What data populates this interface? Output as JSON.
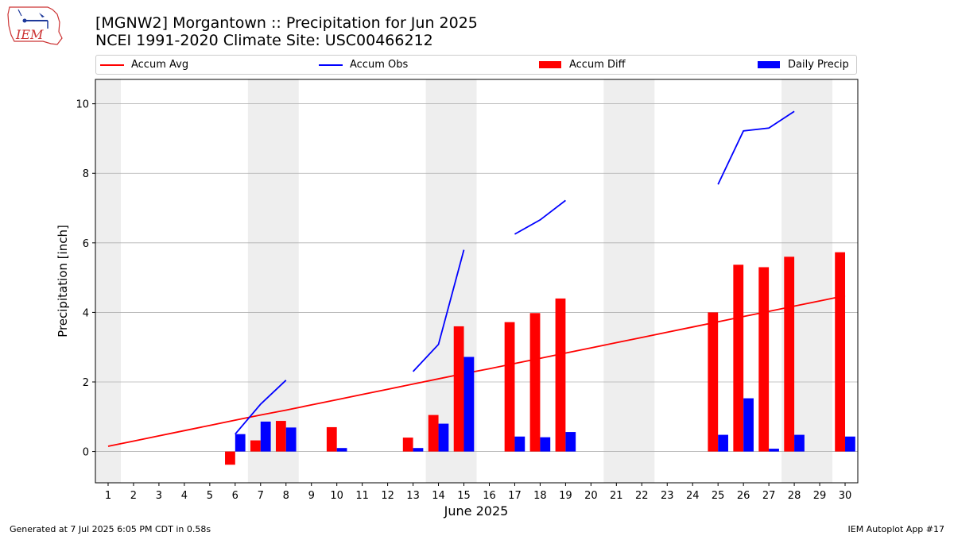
{
  "header": {
    "title_line1": "[MGNW2] Morgantown :: Precipitation for Jun 2025",
    "title_line2": "NCEI 1991-2020 Climate Site: USC00466212",
    "logo_text": "IEM"
  },
  "footer": {
    "generated": "Generated at 7 Jul 2025 6:05 PM CDT in 0.58s",
    "app": "IEM Autoplot App #17"
  },
  "colors": {
    "avg": "#ff0000",
    "obs": "#0000ff",
    "diff": "#ff0000",
    "daily": "#0000ff",
    "weekend_shade": "#eeeeee",
    "grid": "#b0b0b0"
  },
  "chart_data": {
    "type": "bar",
    "xlabel": "June 2025",
    "ylabel": "Precipitation [inch]",
    "xlim": [
      0.5,
      30.5
    ],
    "ylim": [
      -0.9,
      10.7
    ],
    "yticks": [
      0,
      2,
      4,
      6,
      8,
      10
    ],
    "x": [
      1,
      2,
      3,
      4,
      5,
      6,
      7,
      8,
      9,
      10,
      11,
      12,
      13,
      14,
      15,
      16,
      17,
      18,
      19,
      20,
      21,
      22,
      23,
      24,
      25,
      26,
      27,
      28,
      29,
      30
    ],
    "grid": "horizontal",
    "legend_placement": "top",
    "shaded_days": [
      [
        0.5,
        1.5
      ],
      [
        6.5,
        8.5
      ],
      [
        13.5,
        15.5
      ],
      [
        20.5,
        22.5
      ],
      [
        27.5,
        29.5
      ]
    ],
    "series": [
      {
        "name": "Accum Avg",
        "kind": "line",
        "values": [
          0.15,
          0.3,
          0.45,
          0.6,
          0.75,
          0.9,
          1.05,
          1.19,
          1.34,
          1.49,
          1.64,
          1.79,
          1.94,
          2.09,
          2.24,
          2.38,
          2.53,
          2.68,
          2.83,
          2.98,
          3.13,
          3.28,
          3.43,
          3.58,
          3.73,
          3.88,
          4.03,
          4.18,
          4.33,
          4.48
        ]
      },
      {
        "name": "Accum Obs",
        "kind": "line",
        "values": [
          null,
          null,
          null,
          null,
          null,
          0.5,
          1.36,
          2.05,
          null,
          null,
          null,
          null,
          2.3,
          3.08,
          5.8,
          null,
          6.25,
          6.66,
          7.22,
          null,
          null,
          null,
          null,
          null,
          7.68,
          9.22,
          9.3,
          9.78,
          null,
          null
        ]
      },
      {
        "name": "Accum Diff",
        "kind": "bar",
        "values": [
          null,
          null,
          null,
          null,
          null,
          -0.38,
          0.32,
          0.88,
          null,
          0.7,
          null,
          null,
          0.4,
          1.05,
          3.6,
          null,
          3.72,
          3.98,
          4.4,
          null,
          null,
          null,
          null,
          null,
          4.0,
          5.37,
          5.3,
          5.6,
          null,
          5.73
        ]
      },
      {
        "name": "Daily Precip",
        "kind": "bar",
        "values": [
          null,
          null,
          null,
          null,
          null,
          0.5,
          0.86,
          0.69,
          null,
          0.1,
          null,
          null,
          0.1,
          0.8,
          2.72,
          null,
          0.43,
          0.41,
          0.56,
          null,
          null,
          null,
          null,
          null,
          0.48,
          1.53,
          0.08,
          0.48,
          null,
          0.43
        ]
      }
    ]
  }
}
